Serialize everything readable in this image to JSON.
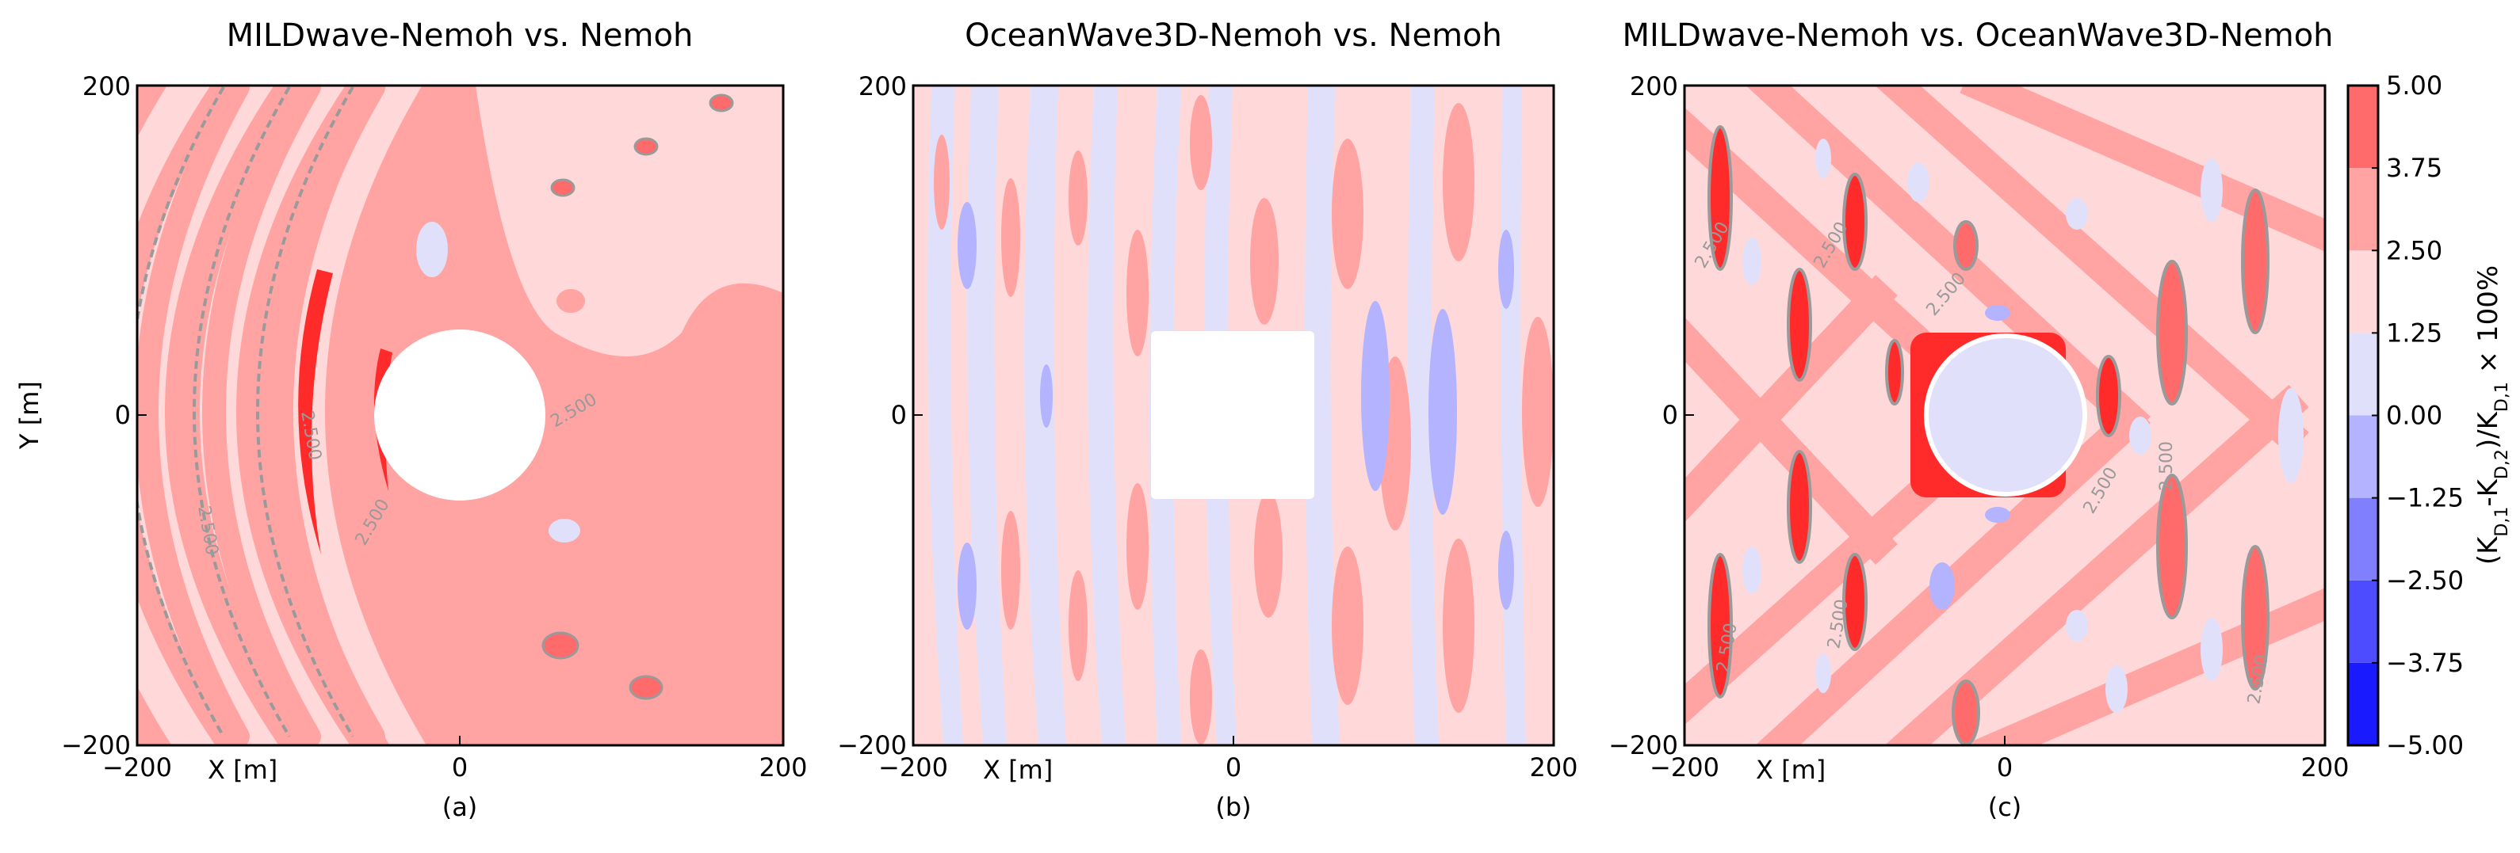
{
  "chart_data": [
    {
      "type": "heatmap",
      "title": "MILDwave-Nemoh vs. Nemoh",
      "xlabel": "X [m]",
      "ylabel": "Y [m]",
      "xlim": [
        -200,
        200
      ],
      "ylim": [
        -200,
        200
      ],
      "x_ticks": [
        "−200",
        "0",
        "200"
      ],
      "y_ticks": [
        "200",
        "0",
        "−200"
      ],
      "subplot_label": "(a)",
      "contour_label": "2.500"
    },
    {
      "type": "heatmap",
      "title": "OceanWave3D-Nemoh vs. Nemoh",
      "xlabel": "X [m]",
      "ylabel": "",
      "xlim": [
        -200,
        200
      ],
      "ylim": [
        -200,
        200
      ],
      "x_ticks": [
        "−200",
        "0",
        "200"
      ],
      "y_ticks": [
        "200",
        "0",
        "−200"
      ],
      "subplot_label": "(b)",
      "contour_label": ""
    },
    {
      "type": "heatmap",
      "title": "MILDwave-Nemoh vs. OceanWave3D-Nemoh",
      "xlabel": "X [m]",
      "ylabel": "",
      "xlim": [
        -200,
        200
      ],
      "ylim": [
        -200,
        200
      ],
      "x_ticks": [
        "−200",
        "0",
        "200"
      ],
      "y_ticks": [
        "200",
        "0",
        "−200"
      ],
      "subplot_label": "(c)",
      "contour_label": "2.500"
    }
  ],
  "colorbar": {
    "label": "(K_D,1-K_D,2)/K_D,1 × 100%",
    "label_parts": {
      "open": "(K",
      "sub1": "D,1",
      "minus": "-K",
      "sub2": "D,2",
      "slash": ")/K",
      "sub3": "D,1",
      "rest": " × 100%"
    },
    "levels": [
      -5.0,
      -3.75,
      -2.5,
      -1.25,
      0.0,
      1.25,
      2.5,
      3.75,
      5.0
    ],
    "tick_labels": [
      "5.00",
      "3.75",
      "2.50",
      "1.25",
      "0.00",
      "−1.25",
      "−2.50",
      "−3.75",
      "−5.00"
    ],
    "colors": [
      "#1a1aff",
      "#4d4dff",
      "#8080ff",
      "#b3b3ff",
      "#e0e0fa",
      "#ffd9d9",
      "#ffa3a3",
      "#ff6b6b",
      "#ff2a2a"
    ]
  }
}
